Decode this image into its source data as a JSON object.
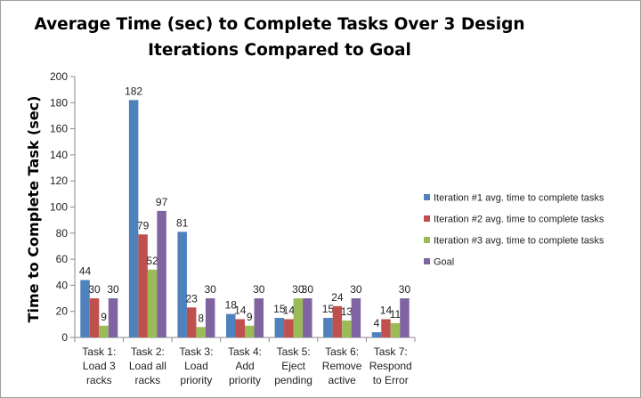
{
  "chart_data": {
    "type": "bar",
    "title_lines": [
      "Average Time (sec) to Complete Tasks Over 3 Design",
      "Iterations Compared to Goal"
    ],
    "xlabel": "",
    "ylabel": "Time to Complete Task (sec)",
    "ylim": [
      0,
      200
    ],
    "yticks": [
      0,
      20,
      40,
      60,
      80,
      100,
      120,
      140,
      160,
      180,
      200
    ],
    "grid": false,
    "legend_position": "right",
    "categories": [
      [
        "Task 1:",
        "Load 3",
        "racks"
      ],
      [
        "Task 2:",
        "Load all",
        "racks"
      ],
      [
        "Task 3:",
        "Load",
        "priority"
      ],
      [
        "Task 4:",
        "Add",
        "priority"
      ],
      [
        "Task 5:",
        "Eject",
        "pending"
      ],
      [
        "Task 6:",
        "Remove",
        "active"
      ],
      [
        "Task 7:",
        "Respond",
        "to Error"
      ]
    ],
    "series": [
      {
        "name": "Iteration #1 avg. time to complete tasks",
        "color": "#4f81bd",
        "values": [
          44,
          182,
          81,
          18,
          15,
          15,
          4
        ]
      },
      {
        "name": "Iteration #2 avg. time to complete tasks",
        "color": "#c0504d",
        "values": [
          30,
          79,
          23,
          14,
          14,
          24,
          14
        ]
      },
      {
        "name": "Iteration #3 avg. time to complete tasks",
        "color": "#9bbb59",
        "values": [
          9,
          52,
          8,
          9,
          30,
          13,
          11
        ]
      },
      {
        "name": "Goal",
        "color": "#8064a2",
        "values": [
          30,
          97,
          30,
          30,
          30,
          30,
          30
        ]
      }
    ]
  }
}
